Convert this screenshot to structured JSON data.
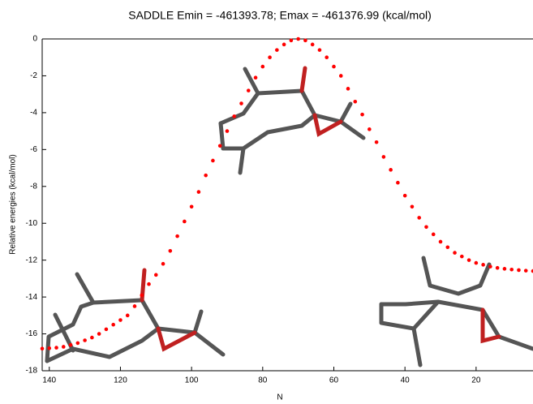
{
  "chart_data": {
    "type": "scatter",
    "title": "SADDLE Emin = -461393.78; Emax = -461376.99 (kcal/mol)",
    "xlabel": "N",
    "ylabel": "Relative energies (kcal/mol)",
    "color": "#ff0000",
    "x": [
      142,
      140,
      138,
      136,
      134,
      132,
      130,
      128,
      126,
      124,
      122,
      120,
      118,
      116,
      114,
      112,
      110,
      108,
      106,
      104,
      102,
      100,
      98,
      96,
      94,
      92,
      90,
      88,
      86,
      84,
      82,
      80,
      78,
      76,
      74,
      72,
      70,
      68,
      66,
      64,
      62,
      60,
      58,
      56,
      54,
      52,
      50,
      48,
      46,
      44,
      42,
      40,
      38,
      36,
      34,
      32,
      30,
      28,
      26,
      24,
      22,
      20,
      18,
      16,
      14,
      12,
      10,
      8,
      6,
      4
    ],
    "values": [
      -16.8,
      -16.78,
      -16.75,
      -16.7,
      -16.6,
      -16.5,
      -16.35,
      -16.2,
      -16.0,
      -15.75,
      -15.5,
      -15.25,
      -15.0,
      -14.5,
      -13.9,
      -13.3,
      -12.8,
      -12.2,
      -11.5,
      -10.7,
      -9.9,
      -9.1,
      -8.3,
      -7.4,
      -6.6,
      -5.8,
      -5.0,
      -4.2,
      -3.5,
      -2.8,
      -2.1,
      -1.5,
      -1.0,
      -0.6,
      -0.3,
      -0.08,
      0,
      -0.08,
      -0.3,
      -0.6,
      -1.0,
      -1.5,
      -2.0,
      -2.7,
      -3.4,
      -4.1,
      -4.9,
      -5.6,
      -6.4,
      -7.1,
      -7.8,
      -8.5,
      -9.1,
      -9.7,
      -10.2,
      -10.6,
      -11.0,
      -11.3,
      -11.6,
      -11.8,
      -12.0,
      -12.15,
      -12.25,
      -12.35,
      -12.42,
      -12.47,
      -12.51,
      -12.54,
      -12.57,
      -12.59
    ],
    "xlim": [
      142,
      4
    ],
    "ylim": [
      -18,
      0
    ],
    "xticks": [
      140,
      120,
      100,
      80,
      60,
      40,
      20
    ],
    "yticks": [
      0,
      -2,
      -4,
      -6,
      -8,
      -10,
      -12,
      -14,
      -16,
      -18
    ]
  }
}
